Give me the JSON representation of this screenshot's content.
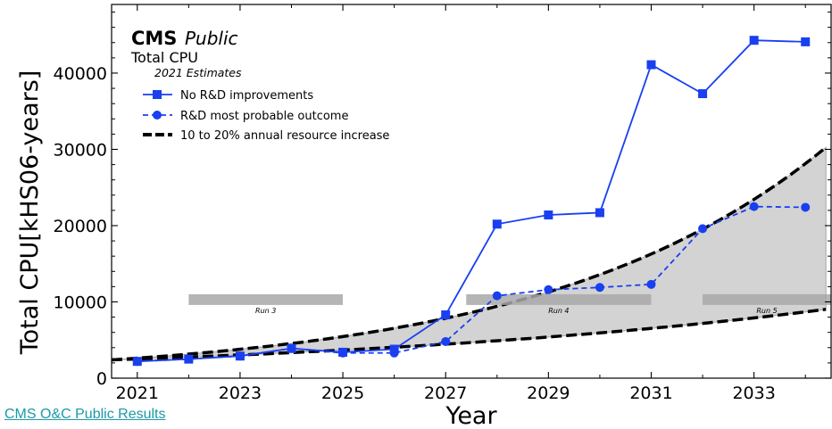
{
  "chart_data": {
    "type": "line",
    "title": "CMS",
    "title_suffix": "Public",
    "subtitle": "Total CPU",
    "subsubtitle": "2021 Estimates",
    "xlabel": "Year",
    "ylabel": "Total CPU[kHS06-years]",
    "xlim": [
      2020.5,
      2034.5
    ],
    "ylim": [
      0,
      49000
    ],
    "xticks": [
      2021,
      2023,
      2025,
      2027,
      2029,
      2031,
      2033
    ],
    "yticks": [
      0,
      10000,
      20000,
      30000,
      40000
    ],
    "legend_position": "upper-left",
    "grid": false,
    "series": [
      {
        "name": "No R&D improvements",
        "style": "solid-square",
        "color": "#1a3ff0",
        "x": [
          2021,
          2022,
          2023,
          2024,
          2025,
          2026,
          2027,
          2028,
          2029,
          2030,
          2031,
          2032,
          2033,
          2034
        ],
        "y": [
          2200,
          2500,
          2900,
          3900,
          3400,
          3800,
          8300,
          20200,
          21400,
          21700,
          41100,
          37300,
          44300,
          44100
        ]
      },
      {
        "name": "R&D most probable outcome",
        "style": "dashed-circle",
        "color": "#1a3ff0",
        "x": [
          2021,
          2022,
          2023,
          2024,
          2025,
          2026,
          2027,
          2028,
          2029,
          2030,
          2031,
          2032,
          2033,
          2034
        ],
        "y": [
          2200,
          2500,
          2900,
          3900,
          3300,
          3300,
          4800,
          10800,
          11600,
          11900,
          12300,
          19600,
          22500,
          22400
        ]
      },
      {
        "name": "10 to 20% annual resource increase",
        "style": "thick-dashed-band",
        "color": "#000000",
        "x_start": 2020.5,
        "y_start": 2400,
        "growth_low": 0.1,
        "growth_high": 0.2,
        "x_end": 2034.4
      }
    ],
    "run_periods": [
      {
        "label": "Run 3",
        "x_start": 2022.0,
        "x_end": 2025.0,
        "y": 10300
      },
      {
        "label": "Run 4",
        "x_start": 2027.4,
        "x_end": 2031.0,
        "y": 10300
      },
      {
        "label": "Run 5",
        "x_start": 2032.0,
        "x_end": 2034.5,
        "y": 10300
      }
    ],
    "colors": {
      "series": "#1a3ff0",
      "band_fill": "#d3d3d3",
      "run_bar": "#a8a8a8"
    }
  },
  "footer": {
    "link_text": "CMS O&C Public Results"
  }
}
